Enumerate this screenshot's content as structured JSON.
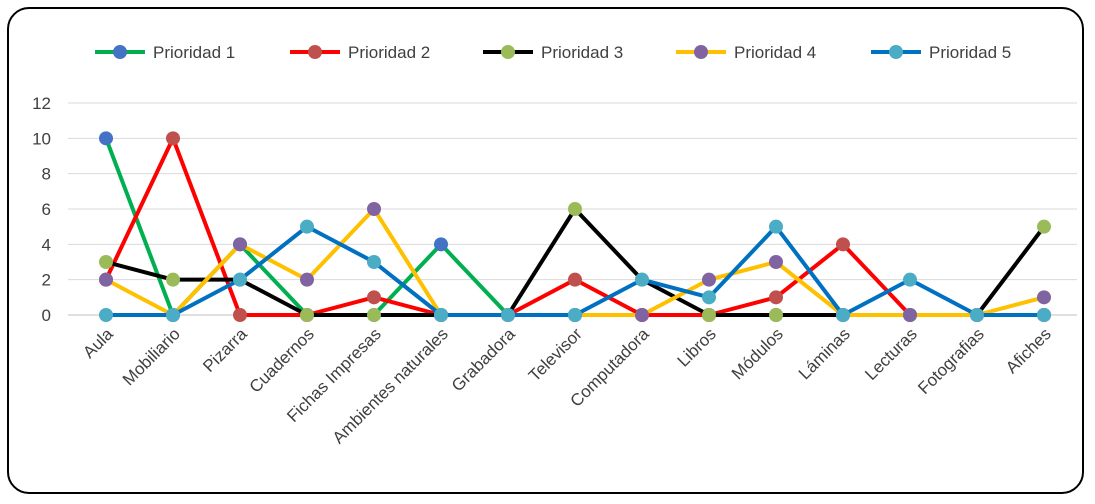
{
  "chart_data": {
    "type": "line",
    "title": "",
    "xlabel": "",
    "ylabel": "",
    "ylim": [
      0,
      12
    ],
    "yticks": [
      "0",
      "2",
      "4",
      "6",
      "8",
      "10",
      "12"
    ],
    "grid": true,
    "legend_position": "top",
    "categories": [
      "Aula",
      "Mobiliario",
      "Pizarra",
      "Cuadernos",
      "Fichas Impresas",
      "Ambientes naturales",
      "Grabadora",
      "Televisor",
      "Computadora",
      "Libros",
      "Módulos",
      "Láminas",
      "Lecturas",
      "Fotografias",
      "Afiches"
    ],
    "series": [
      {
        "name": "Prioridad 1",
        "line_color": "#00B050",
        "marker_color": "#4472C4",
        "values": [
          10,
          0,
          4,
          0,
          0,
          4,
          0,
          0,
          0,
          0,
          0,
          0,
          0,
          0,
          0
        ]
      },
      {
        "name": "Prioridad 2",
        "line_color": "#FF0000",
        "marker_color": "#C0504D",
        "values": [
          2,
          10,
          0,
          0,
          1,
          0,
          0,
          2,
          0,
          0,
          1,
          4,
          0,
          0,
          0
        ]
      },
      {
        "name": "Prioridad 3",
        "line_color": "#000000",
        "marker_color": "#9BBB59",
        "values": [
          3,
          2,
          2,
          0,
          0,
          0,
          0,
          6,
          2,
          0,
          0,
          0,
          0,
          0,
          5
        ]
      },
      {
        "name": "Prioridad 4",
        "line_color": "#FFC000",
        "marker_color": "#8064A2",
        "values": [
          2,
          0,
          4,
          2,
          6,
          0,
          0,
          0,
          0,
          2,
          3,
          0,
          0,
          0,
          1
        ]
      },
      {
        "name": "Prioridad 5",
        "line_color": "#0070C0",
        "marker_color": "#4BACC6",
        "values": [
          0,
          0,
          2,
          5,
          3,
          0,
          0,
          0,
          2,
          1,
          5,
          0,
          2,
          0,
          0
        ]
      }
    ]
  }
}
